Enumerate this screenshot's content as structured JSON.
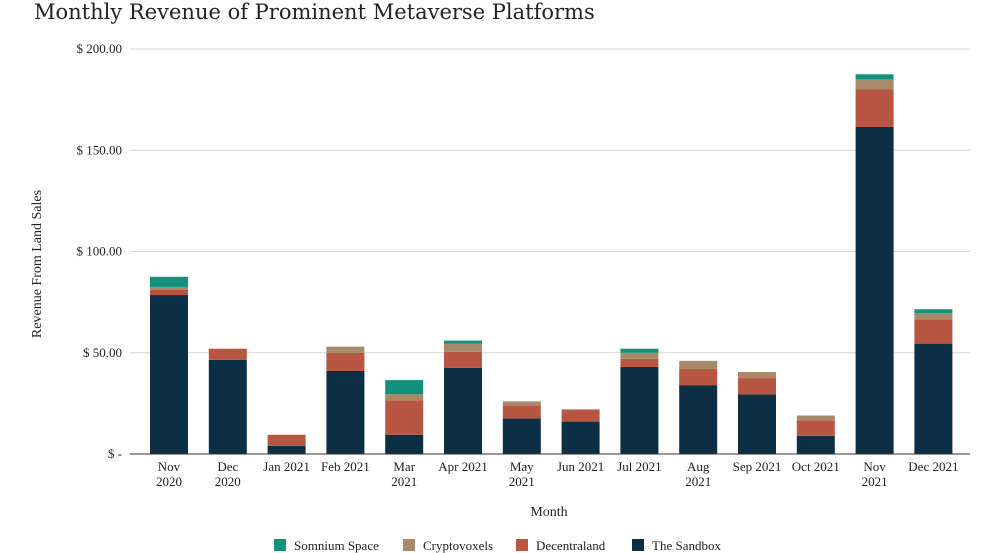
{
  "chart_data": {
    "type": "bar",
    "stacked": true,
    "title": "Monthly Revenue of Prominent Metaverse Platforms",
    "xlabel": "Month",
    "ylabel": "Revenue From Land Sales",
    "ylim": [
      0,
      200
    ],
    "yticks": [
      0,
      50,
      100,
      150,
      200
    ],
    "ytick_labels": [
      "$ -",
      "$ 50.00",
      "$ 100.00",
      "$ 150.00",
      "$ 200.00"
    ],
    "grid": true,
    "legend_position": "bottom",
    "categories": [
      [
        "Nov",
        "2020"
      ],
      [
        "Dec",
        "2020"
      ],
      [
        "Jan 2021"
      ],
      [
        "Feb 2021"
      ],
      [
        "Mar",
        "2021"
      ],
      [
        "Apr 2021"
      ],
      [
        "May",
        "2021"
      ],
      [
        "Jun 2021"
      ],
      [
        "Jul 2021"
      ],
      [
        "Aug",
        "2021"
      ],
      [
        "Sep 2021"
      ],
      [
        "Oct 2021"
      ],
      [
        "Nov",
        "2021"
      ],
      [
        "Dec 2021"
      ]
    ],
    "series": [
      {
        "name": "The Sandbox",
        "color": "#0d2f45",
        "values": [
          78.5,
          46.5,
          4,
          41,
          9.5,
          42.5,
          17.5,
          16,
          43,
          34,
          29.5,
          9,
          161.5,
          54.5
        ]
      },
      {
        "name": "Decentraland",
        "color": "#b85642",
        "values": [
          2.5,
          5.5,
          5.5,
          9,
          17,
          8,
          6.5,
          6,
          4,
          8,
          8,
          7.5,
          18.5,
          12
        ]
      },
      {
        "name": "Cryptovoxels",
        "color": "#a88a6a",
        "values": [
          1.5,
          0,
          0,
          3,
          3,
          4,
          2,
          0,
          3,
          4,
          3,
          2.5,
          5,
          3
        ]
      },
      {
        "name": "Somnium Space",
        "color": "#13907e",
        "values": [
          5,
          0,
          0,
          0,
          7,
          1.5,
          0,
          0,
          2,
          0,
          0,
          0,
          2.5,
          2
        ]
      }
    ],
    "legend_order": [
      "Somnium Space",
      "Cryptovoxels",
      "Decentraland",
      "The Sandbox"
    ]
  }
}
